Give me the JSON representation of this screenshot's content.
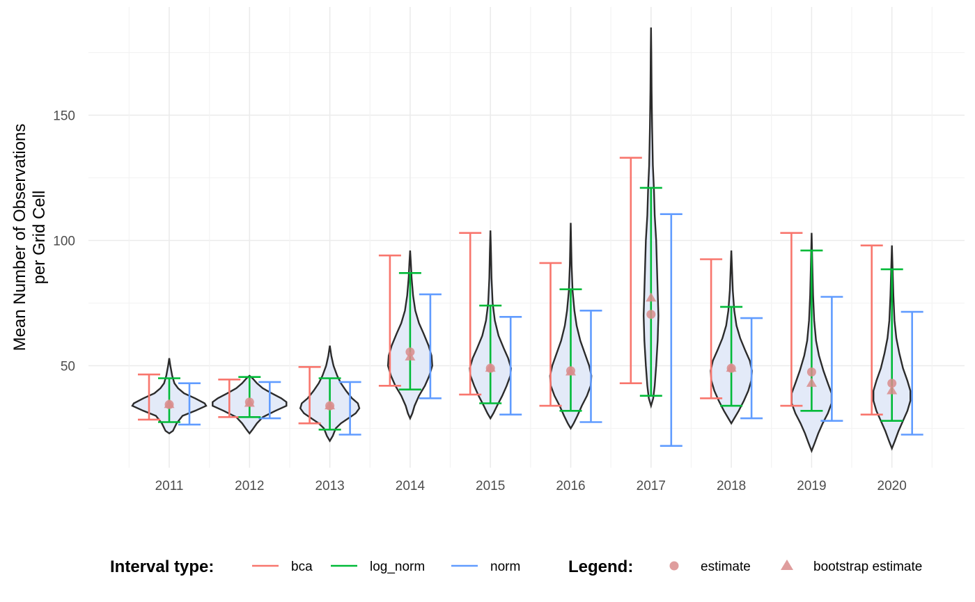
{
  "chart_data": {
    "type": "violin",
    "title": "",
    "xlabel": "",
    "ylabel": "Mean Number of Observations\nper Grid Cell",
    "ylim": [
      10,
      185
    ],
    "yticks": [
      50,
      100,
      150
    ],
    "grid": true,
    "categories": [
      "2011",
      "2012",
      "2013",
      "2014",
      "2015",
      "2016",
      "2017",
      "2018",
      "2019",
      "2020"
    ],
    "violins": [
      {
        "year": "2011",
        "min": 23,
        "max": 53,
        "profile": [
          [
            23,
            0.0
          ],
          [
            24,
            0.05
          ],
          [
            27,
            0.1
          ],
          [
            30,
            0.18
          ],
          [
            32,
            0.35
          ],
          [
            34,
            0.5
          ],
          [
            35,
            0.48
          ],
          [
            37,
            0.35
          ],
          [
            39,
            0.2
          ],
          [
            41,
            0.12
          ],
          [
            43,
            0.07
          ],
          [
            46,
            0.04
          ],
          [
            50,
            0.015
          ],
          [
            53,
            0.0
          ]
        ]
      },
      {
        "year": "2012",
        "min": 23,
        "max": 46,
        "profile": [
          [
            23,
            0.0
          ],
          [
            24.5,
            0.04
          ],
          [
            27,
            0.1
          ],
          [
            29.5,
            0.18
          ],
          [
            32,
            0.35
          ],
          [
            34,
            0.5
          ],
          [
            35.5,
            0.5
          ],
          [
            37,
            0.43
          ],
          [
            39,
            0.3
          ],
          [
            41,
            0.18
          ],
          [
            43,
            0.1
          ],
          [
            45,
            0.04
          ],
          [
            46,
            0.0
          ]
        ]
      },
      {
        "year": "2013",
        "min": 20,
        "max": 58,
        "profile": [
          [
            20,
            0.0
          ],
          [
            22,
            0.04
          ],
          [
            25,
            0.08
          ],
          [
            27,
            0.15
          ],
          [
            29,
            0.25
          ],
          [
            31,
            0.35
          ],
          [
            33,
            0.4
          ],
          [
            35,
            0.38
          ],
          [
            37,
            0.3
          ],
          [
            40,
            0.22
          ],
          [
            43,
            0.15
          ],
          [
            46,
            0.1
          ],
          [
            50,
            0.05
          ],
          [
            54,
            0.02
          ],
          [
            58,
            0.0
          ]
        ]
      },
      {
        "year": "2014",
        "min": 29,
        "max": 96,
        "profile": [
          [
            29,
            0.0
          ],
          [
            31,
            0.03
          ],
          [
            34,
            0.06
          ],
          [
            38,
            0.12
          ],
          [
            42,
            0.2
          ],
          [
            46,
            0.26
          ],
          [
            50,
            0.3
          ],
          [
            54,
            0.29
          ],
          [
            58,
            0.25
          ],
          [
            63,
            0.18
          ],
          [
            67,
            0.12
          ],
          [
            72,
            0.07
          ],
          [
            78,
            0.04
          ],
          [
            85,
            0.02
          ],
          [
            91,
            0.01
          ],
          [
            96,
            0.0
          ]
        ]
      },
      {
        "year": "2015",
        "min": 29,
        "max": 104,
        "profile": [
          [
            29,
            0.0
          ],
          [
            31,
            0.04
          ],
          [
            34,
            0.09
          ],
          [
            38,
            0.16
          ],
          [
            42,
            0.22
          ],
          [
            46,
            0.27
          ],
          [
            49,
            0.28
          ],
          [
            53,
            0.24
          ],
          [
            57,
            0.18
          ],
          [
            62,
            0.11
          ],
          [
            68,
            0.06
          ],
          [
            75,
            0.03
          ],
          [
            85,
            0.015
          ],
          [
            95,
            0.008
          ],
          [
            104,
            0.0
          ]
        ]
      },
      {
        "year": "2016",
        "min": 25,
        "max": 107,
        "profile": [
          [
            25,
            0.0
          ],
          [
            27,
            0.04
          ],
          [
            30,
            0.09
          ],
          [
            34,
            0.15
          ],
          [
            38,
            0.22
          ],
          [
            42,
            0.27
          ],
          [
            46,
            0.28
          ],
          [
            50,
            0.25
          ],
          [
            55,
            0.19
          ],
          [
            60,
            0.13
          ],
          [
            66,
            0.08
          ],
          [
            72,
            0.05
          ],
          [
            80,
            0.025
          ],
          [
            90,
            0.012
          ],
          [
            100,
            0.005
          ],
          [
            107,
            0.0
          ]
        ]
      },
      {
        "year": "2017",
        "min": 34,
        "max": 185,
        "profile": [
          [
            34,
            0.0
          ],
          [
            37,
            0.03
          ],
          [
            42,
            0.05
          ],
          [
            50,
            0.07
          ],
          [
            60,
            0.09
          ],
          [
            70,
            0.1
          ],
          [
            80,
            0.09
          ],
          [
            90,
            0.08
          ],
          [
            100,
            0.07
          ],
          [
            110,
            0.05
          ],
          [
            120,
            0.04
          ],
          [
            130,
            0.025
          ],
          [
            145,
            0.015
          ],
          [
            160,
            0.008
          ],
          [
            175,
            0.004
          ],
          [
            185,
            0.0
          ]
        ]
      },
      {
        "year": "2018",
        "min": 27,
        "max": 96,
        "profile": [
          [
            27,
            0.0
          ],
          [
            29,
            0.04
          ],
          [
            32,
            0.1
          ],
          [
            36,
            0.17
          ],
          [
            40,
            0.23
          ],
          [
            44,
            0.27
          ],
          [
            48,
            0.28
          ],
          [
            52,
            0.25
          ],
          [
            56,
            0.19
          ],
          [
            61,
            0.12
          ],
          [
            66,
            0.07
          ],
          [
            72,
            0.04
          ],
          [
            80,
            0.02
          ],
          [
            88,
            0.01
          ],
          [
            96,
            0.0
          ]
        ]
      },
      {
        "year": "2019",
        "min": 16,
        "max": 103,
        "profile": [
          [
            16,
            0.0
          ],
          [
            19,
            0.04
          ],
          [
            23,
            0.09
          ],
          [
            27,
            0.15
          ],
          [
            31,
            0.22
          ],
          [
            35,
            0.27
          ],
          [
            39,
            0.27
          ],
          [
            43,
            0.22
          ],
          [
            48,
            0.16
          ],
          [
            54,
            0.1
          ],
          [
            60,
            0.06
          ],
          [
            68,
            0.035
          ],
          [
            78,
            0.02
          ],
          [
            90,
            0.01
          ],
          [
            103,
            0.0
          ]
        ]
      },
      {
        "year": "2020",
        "min": 17,
        "max": 98,
        "profile": [
          [
            17,
            0.0
          ],
          [
            20,
            0.04
          ],
          [
            24,
            0.09
          ],
          [
            28,
            0.15
          ],
          [
            32,
            0.21
          ],
          [
            36,
            0.25
          ],
          [
            40,
            0.25
          ],
          [
            44,
            0.21
          ],
          [
            49,
            0.15
          ],
          [
            55,
            0.1
          ],
          [
            61,
            0.06
          ],
          [
            68,
            0.035
          ],
          [
            78,
            0.02
          ],
          [
            88,
            0.01
          ],
          [
            98,
            0.0
          ]
        ]
      }
    ],
    "intervals": {
      "bca": [
        [
          28.5,
          46.5
        ],
        [
          29.5,
          44.5
        ],
        [
          27,
          49.5
        ],
        [
          42,
          94
        ],
        [
          38.5,
          103
        ],
        [
          34,
          91
        ],
        [
          43,
          133
        ],
        [
          37,
          92.5
        ],
        [
          34,
          103
        ],
        [
          30.5,
          98
        ]
      ],
      "log_norm": [
        [
          27.5,
          45
        ],
        [
          29.5,
          45.5
        ],
        [
          24.5,
          45
        ],
        [
          40.5,
          87
        ],
        [
          35,
          74
        ],
        [
          32,
          80.5
        ],
        [
          38,
          121
        ],
        [
          34,
          73.5
        ],
        [
          32,
          96
        ],
        [
          28,
          88.5
        ]
      ],
      "norm": [
        [
          26.5,
          43
        ],
        [
          29,
          43.5
        ],
        [
          22.5,
          43.5
        ],
        [
          37,
          78.5
        ],
        [
          30.5,
          69.5
        ],
        [
          27.5,
          72
        ],
        [
          18,
          110.5
        ],
        [
          29,
          69
        ],
        [
          28,
          77.5
        ],
        [
          22.5,
          71.5
        ]
      ]
    },
    "estimate": [
      34.5,
      35.5,
      34,
      55.5,
      49,
      48,
      70.5,
      49,
      47.5,
      43
    ],
    "bootstrap_estimate": [
      34.5,
      35,
      34,
      53.5,
      49,
      47.5,
      77,
      49,
      43,
      40
    ],
    "series": [
      {
        "name": "bca",
        "color": "#f8766d",
        "kind": "interval"
      },
      {
        "name": "log_norm",
        "color": "#00ba38",
        "kind": "interval"
      },
      {
        "name": "norm",
        "color": "#619cff",
        "kind": "interval"
      },
      {
        "name": "estimate",
        "color": "#d98c8c",
        "kind": "point",
        "shape": "circle"
      },
      {
        "name": "bootstrap estimate",
        "color": "#d98c8c",
        "kind": "point",
        "shape": "triangle"
      }
    ],
    "legend": {
      "position": "bottom",
      "interval_title": "Interval type:",
      "interval_items": [
        "bca",
        "log_norm",
        "norm"
      ],
      "point_title": "Legend:",
      "point_items": [
        "estimate",
        "bootstrap estimate"
      ]
    }
  }
}
